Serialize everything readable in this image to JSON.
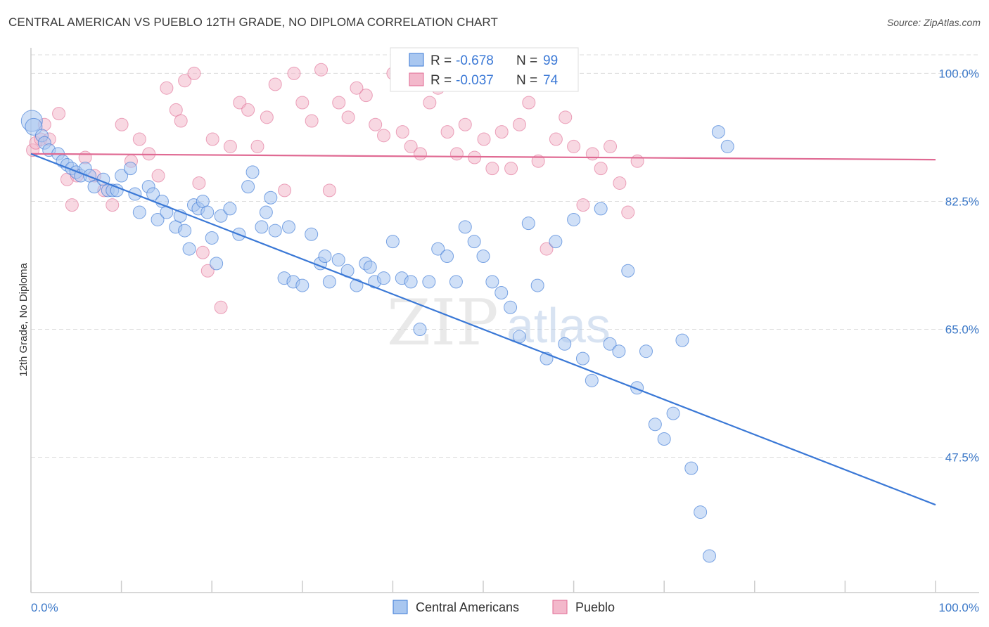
{
  "header": {
    "title": "CENTRAL AMERICAN VS PUEBLO 12TH GRADE, NO DIPLOMA CORRELATION CHART",
    "source": "Source: ZipAtlas.com"
  },
  "colors": {
    "blue": "#3a78d6",
    "blue_fill": "#a9c7f0",
    "pink": "#e06a93",
    "pink_fill": "#f3b8cb",
    "tick_text": "#3b78c8",
    "grid": "#dddddd"
  },
  "legend": {
    "rows": [
      {
        "r_label": "R =",
        "r_value": "-0.678",
        "n_label": "N =",
        "n_value": "99"
      },
      {
        "r_label": "R =",
        "r_value": "-0.037",
        "n_label": "N =",
        "n_value": "74"
      }
    ]
  },
  "watermark": {
    "part1": "ZIP",
    "part2": "atlas"
  },
  "chart_data": {
    "type": "scatter",
    "title": "CENTRAL AMERICAN VS PUEBLO 12TH GRADE, NO DIPLOMA CORRELATION CHART",
    "xlabel": "",
    "ylabel": "12th Grade, No Diploma",
    "xlim": [
      0,
      100
    ],
    "ylim": [
      29,
      103.5
    ],
    "x_tick_labels": [
      "0.0%",
      "100.0%"
    ],
    "y_ticks": [
      {
        "value": 100.0,
        "label": "100.0%"
      },
      {
        "value": 82.5,
        "label": "82.5%"
      },
      {
        "value": 65.0,
        "label": "65.0%"
      },
      {
        "value": 47.5,
        "label": "47.5%"
      }
    ],
    "series": [
      {
        "name": "Central Americans",
        "color": "#3a78d6",
        "r": -0.678,
        "n": 99,
        "trend": {
          "x": [
            0,
            100
          ],
          "y": [
            89.0,
            41.0
          ]
        },
        "points": [
          [
            0.1,
            93.5
          ],
          [
            0.3,
            92.7
          ],
          [
            1.2,
            91.5
          ],
          [
            1.5,
            90.5
          ],
          [
            2,
            89.5
          ],
          [
            3,
            89
          ],
          [
            3.5,
            88
          ],
          [
            4,
            87.5
          ],
          [
            4.5,
            87
          ],
          [
            5,
            86.5
          ],
          [
            5.5,
            86
          ],
          [
            6,
            87
          ],
          [
            6.5,
            86
          ],
          [
            7,
            84.5
          ],
          [
            8,
            85.5
          ],
          [
            8.5,
            84
          ],
          [
            9,
            84
          ],
          [
            9.5,
            84
          ],
          [
            10,
            86
          ],
          [
            11,
            87
          ],
          [
            11.5,
            83.5
          ],
          [
            12,
            81
          ],
          [
            13,
            84.5
          ],
          [
            13.5,
            83.5
          ],
          [
            14,
            80
          ],
          [
            14.5,
            82.5
          ],
          [
            15,
            81
          ],
          [
            16,
            79
          ],
          [
            16.5,
            80.5
          ],
          [
            17,
            78.5
          ],
          [
            17.5,
            76
          ],
          [
            18,
            82
          ],
          [
            18.5,
            81.5
          ],
          [
            19,
            82.5
          ],
          [
            19.5,
            81
          ],
          [
            20,
            77.5
          ],
          [
            20.5,
            74
          ],
          [
            21,
            80.5
          ],
          [
            22,
            81.5
          ],
          [
            23,
            78
          ],
          [
            24,
            84.5
          ],
          [
            24.5,
            86.5
          ],
          [
            25.5,
            79
          ],
          [
            26,
            81
          ],
          [
            26.5,
            83
          ],
          [
            27,
            78.5
          ],
          [
            28,
            72
          ],
          [
            28.5,
            79
          ],
          [
            29,
            71.5
          ],
          [
            30,
            71
          ],
          [
            31,
            78
          ],
          [
            32,
            74
          ],
          [
            32.5,
            75
          ],
          [
            33,
            71.5
          ],
          [
            34,
            74.5
          ],
          [
            35,
            73
          ],
          [
            36,
            71
          ],
          [
            37,
            74
          ],
          [
            37.5,
            73.5
          ],
          [
            38,
            71.5
          ],
          [
            39,
            72
          ],
          [
            40,
            77
          ],
          [
            41,
            72
          ],
          [
            42,
            71.5
          ],
          [
            43,
            65
          ],
          [
            44,
            71.5
          ],
          [
            45,
            76
          ],
          [
            46,
            75
          ],
          [
            47,
            71.5
          ],
          [
            48,
            79
          ],
          [
            49,
            77
          ],
          [
            50,
            75
          ],
          [
            51,
            71.5
          ],
          [
            52,
            70
          ],
          [
            53,
            68
          ],
          [
            54,
            64
          ],
          [
            55,
            79.5
          ],
          [
            56,
            71
          ],
          [
            57,
            61
          ],
          [
            58,
            77
          ],
          [
            59,
            63
          ],
          [
            60,
            80
          ],
          [
            61,
            61
          ],
          [
            62,
            58
          ],
          [
            63,
            81.5
          ],
          [
            64,
            63
          ],
          [
            65,
            62
          ],
          [
            66,
            73
          ],
          [
            67,
            57
          ],
          [
            68,
            62
          ],
          [
            69,
            52
          ],
          [
            70,
            50
          ],
          [
            71,
            53.5
          ],
          [
            72,
            63.5
          ],
          [
            73,
            46
          ],
          [
            74,
            40
          ],
          [
            75,
            34
          ],
          [
            76,
            92
          ],
          [
            77,
            90
          ]
        ]
      },
      {
        "name": "Pueblo",
        "color": "#e06a93",
        "r": -0.037,
        "n": 74,
        "trend": {
          "x": [
            0,
            100
          ],
          "y": [
            89.0,
            88.2
          ]
        },
        "points": [
          [
            0.2,
            89.5
          ],
          [
            0.5,
            90.5
          ],
          [
            1,
            91
          ],
          [
            1.5,
            93
          ],
          [
            2,
            91
          ],
          [
            3,
            94.5
          ],
          [
            4,
            85.5
          ],
          [
            4.5,
            82
          ],
          [
            5,
            86
          ],
          [
            6,
            88.5
          ],
          [
            7,
            86
          ],
          [
            8,
            84
          ],
          [
            9,
            82
          ],
          [
            10,
            93
          ],
          [
            11,
            88
          ],
          [
            12,
            91
          ],
          [
            13,
            89
          ],
          [
            14,
            86
          ],
          [
            15,
            98
          ],
          [
            16,
            95
          ],
          [
            16.5,
            93.5
          ],
          [
            17,
            99
          ],
          [
            18,
            100
          ],
          [
            18.5,
            85
          ],
          [
            19,
            75.5
          ],
          [
            19.5,
            73
          ],
          [
            20,
            91
          ],
          [
            21,
            68
          ],
          [
            22,
            90
          ],
          [
            23,
            96
          ],
          [
            24,
            95
          ],
          [
            25,
            90
          ],
          [
            26,
            94
          ],
          [
            27,
            98.5
          ],
          [
            28,
            84
          ],
          [
            29,
            100
          ],
          [
            30,
            96
          ],
          [
            31,
            93.5
          ],
          [
            32,
            100.5
          ],
          [
            33,
            84
          ],
          [
            34,
            96
          ],
          [
            35,
            94
          ],
          [
            36,
            98
          ],
          [
            37,
            97
          ],
          [
            38,
            93
          ],
          [
            39,
            91.5
          ],
          [
            40,
            100
          ],
          [
            41,
            92
          ],
          [
            42,
            90
          ],
          [
            43,
            89
          ],
          [
            44,
            96
          ],
          [
            45,
            98
          ],
          [
            46,
            92
          ],
          [
            47,
            89
          ],
          [
            48,
            93
          ],
          [
            49,
            88.5
          ],
          [
            50,
            91
          ],
          [
            51,
            87
          ],
          [
            52,
            92
          ],
          [
            53,
            87
          ],
          [
            54,
            93
          ],
          [
            55,
            96
          ],
          [
            56,
            88
          ],
          [
            57,
            76
          ],
          [
            58,
            91
          ],
          [
            59,
            94
          ],
          [
            60,
            90
          ],
          [
            61,
            82
          ],
          [
            62,
            89
          ],
          [
            63,
            87
          ],
          [
            64,
            90
          ],
          [
            65,
            85
          ],
          [
            66,
            81
          ],
          [
            67,
            88
          ]
        ]
      }
    ]
  },
  "bottom_legend": {
    "items": [
      {
        "label": "Central Americans"
      },
      {
        "label": "Pueblo"
      }
    ]
  }
}
